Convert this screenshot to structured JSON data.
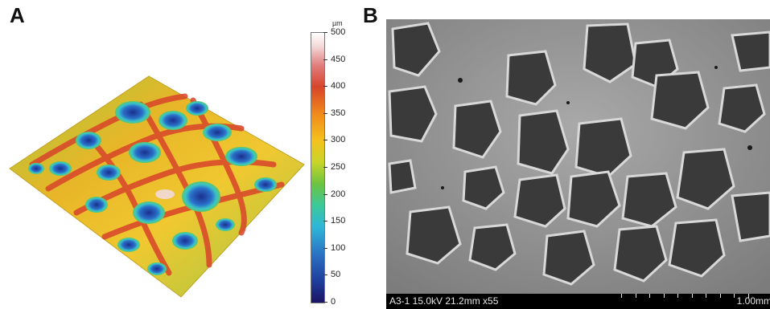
{
  "panel_a": {
    "label": "A",
    "colorbar": {
      "unit": "µm",
      "ticks": [
        "500",
        "450",
        "400",
        "350",
        "300",
        "250",
        "200",
        "150",
        "100",
        "50",
        "0"
      ]
    }
  },
  "panel_b": {
    "label": "B",
    "info_text": "A3-1 15.0kV 21.2mm x55",
    "scale_text": "1.00mm"
  }
}
